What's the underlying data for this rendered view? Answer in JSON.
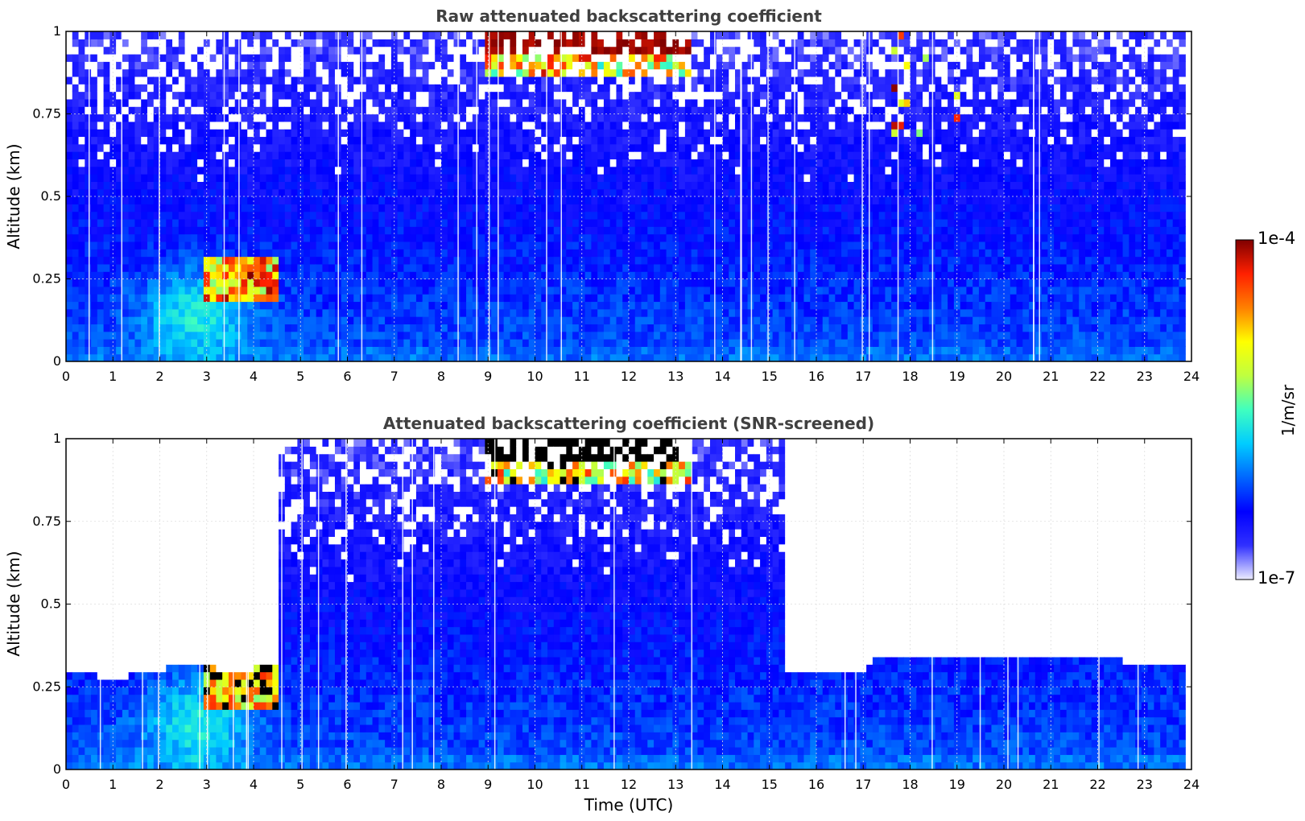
{
  "chart_data": [
    {
      "type": "heatmap",
      "title": "Raw attenuated backscattering coefficient",
      "xlabel": "",
      "ylabel": "Altitude (km)",
      "xlim": [
        0,
        24
      ],
      "ylim": [
        0,
        1
      ],
      "x_ticks": [
        "0",
        "1",
        "2",
        "3",
        "4",
        "5",
        "6",
        "7",
        "8",
        "9",
        "10",
        "11",
        "12",
        "13",
        "14",
        "15",
        "16",
        "17",
        "18",
        "19",
        "20",
        "21",
        "22",
        "23",
        "24"
      ],
      "y_ticks": [
        "0",
        "0.25",
        "0.5",
        "0.75",
        "1"
      ],
      "grid": true,
      "colormap": "jet-like (white at low end, dark red at high end)",
      "color_scale": "log",
      "features": [
        {
          "x_range": [
            3.0,
            4.6
          ],
          "y_range": [
            0.18,
            0.32
          ],
          "level": "high (red)"
        },
        {
          "x_range": [
            9.0,
            13.3
          ],
          "y_range": [
            0.87,
            1.0
          ],
          "level": "very high (dark red)"
        },
        {
          "x_range": [
            17.5,
            19.0
          ],
          "y_range": [
            0.65,
            1.0
          ],
          "level": "medium-high (streaks)"
        }
      ],
      "data_end_x": 23.8
    },
    {
      "type": "heatmap",
      "title": "Attenuated backscattering coefficient (SNR-screened)",
      "xlabel": "Time (UTC)",
      "ylabel": "Altitude (km)",
      "xlim": [
        0,
        24
      ],
      "ylim": [
        0,
        1
      ],
      "x_ticks": [
        "0",
        "1",
        "2",
        "3",
        "4",
        "5",
        "6",
        "7",
        "8",
        "9",
        "10",
        "11",
        "12",
        "13",
        "14",
        "15",
        "16",
        "17",
        "18",
        "19",
        "20",
        "21",
        "22",
        "23",
        "24"
      ],
      "y_ticks": [
        "0",
        "0.25",
        "0.5",
        "0.75",
        "1"
      ],
      "grid": true,
      "colormap": "jet-like (white at low end, dark red at high end)",
      "color_scale": "log",
      "saturated_color": "#000000",
      "screening_top_altitude_km": [
        {
          "x": 0,
          "y": 0.29
        },
        {
          "x": 1.2,
          "y": 0.28
        },
        {
          "x": 2.0,
          "y": 0.3
        },
        {
          "x": 2.5,
          "y": 0.33
        },
        {
          "x": 3.0,
          "y": 0.31
        },
        {
          "x": 3.8,
          "y": 0.3
        },
        {
          "x": 4.6,
          "y": 0.33
        },
        {
          "x": 4.6,
          "y": 1.0
        },
        {
          "x": 15.3,
          "y": 1.0
        },
        {
          "x": 15.3,
          "y": 0.29
        },
        {
          "x": 17.0,
          "y": 0.3
        },
        {
          "x": 17.3,
          "y": 0.34
        },
        {
          "x": 18.0,
          "y": 0.34
        },
        {
          "x": 20.0,
          "y": 0.33
        },
        {
          "x": 21.5,
          "y": 0.34
        },
        {
          "x": 22.5,
          "y": 0.33
        },
        {
          "x": 23.0,
          "y": 0.31
        },
        {
          "x": 23.8,
          "y": 0.31
        }
      ],
      "data_end_x": 23.8
    }
  ],
  "colorbar": {
    "label": "1/m/sr",
    "min_label": "1e-7",
    "max_label": "1e-4",
    "range": [
      1e-07,
      0.0001
    ],
    "colors": [
      "#ececff",
      "#3030ff",
      "#0000ff",
      "#0066ff",
      "#00ccff",
      "#40ffbf",
      "#bfff40",
      "#ffff00",
      "#ff8000",
      "#ff2000",
      "#800000"
    ]
  }
}
